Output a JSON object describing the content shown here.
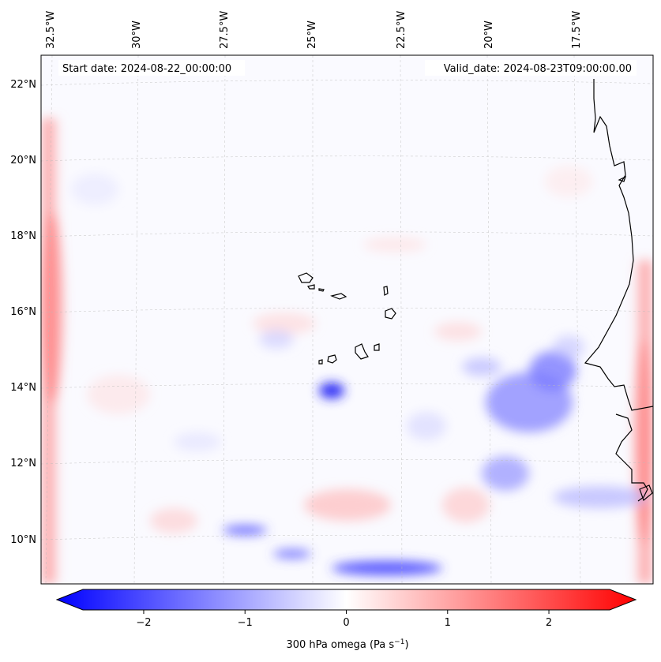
{
  "map": {
    "start_date_label": "Start date: 2024-08-22_00:00:00",
    "valid_date_label": "Valid_date: 2024-08-23T09:00:00.00",
    "lon_labels": [
      "32.5°W",
      "30°W",
      "27.5°W",
      "25°W",
      "22.5°W",
      "20°W",
      "17.5°W"
    ],
    "lat_labels": [
      "22°N",
      "20°N",
      "18°N",
      "16°N",
      "14°N",
      "12°N",
      "10°N"
    ],
    "lon_extent": [
      -33.0,
      -15.5
    ],
    "lat_extent": [
      8.8,
      22.8
    ],
    "field": "300 hPa omega",
    "colormap": "bwr"
  },
  "colorbar": {
    "label_main": "300 hPa omega (Pa s",
    "label_exp": "−1",
    "label_close": ")",
    "ticks": [
      "−2",
      "−1",
      "0",
      "1",
      "2"
    ],
    "tick_values": [
      -2,
      -1,
      0,
      1,
      2
    ],
    "range": [
      -2.6,
      2.6
    ],
    "extend": "both",
    "colors": {
      "min": "#0000ff",
      "mid": "#ffffff",
      "max": "#ff0000"
    }
  }
}
